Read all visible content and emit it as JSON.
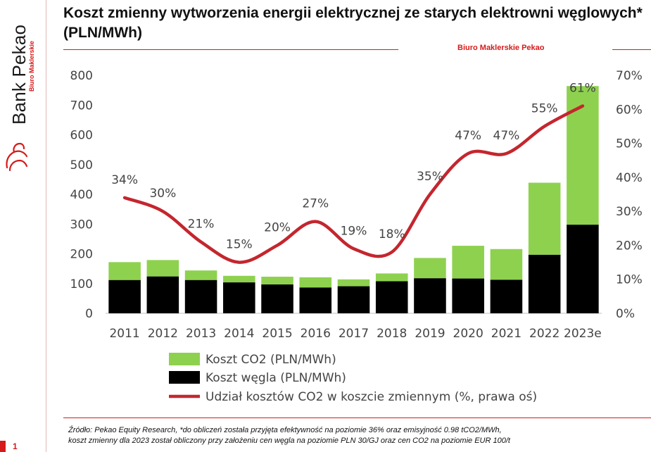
{
  "header": {
    "title": "Koszt zmienny wytworzenia energii elektrycznej ze starych elektrowni węglowych* (PLN/MWh)",
    "source_label": "Biuro Maklerskie Pekao"
  },
  "brand": {
    "name": "Bank Pekao",
    "subtitle": "Biuro Maklerskie",
    "logo_icon": "pekao-bison-icon",
    "accent_color": "#d51b1b"
  },
  "slide": {
    "number": "1"
  },
  "footnote": {
    "line1": "Źródło: Pekao Equity Research, *do obliczeń została przyjęta efektywność na poziomie 36% oraz emisyjność 0.98 tCO2/MWh,",
    "line2": "koszt zmienny dla 2023 został obliczony przy założeniu cen węgla na poziomie PLN 30/GJ oraz cen CO2 na poziomie EUR 100/t"
  },
  "chart_data": {
    "type": "bar",
    "stacked": true,
    "title": "Koszt zmienny wytworzenia energii elektrycznej ze starych elektrowni węglowych* (PLN/MWh)",
    "categories": [
      "2011",
      "2012",
      "2013",
      "2014",
      "2015",
      "2016",
      "2017",
      "2018",
      "2019",
      "2020",
      "2021",
      "2022",
      "2023e"
    ],
    "series": [
      {
        "name": "Koszt węgla (PLN/MWh)",
        "type": "bar",
        "axis": "left",
        "color": "#000000",
        "values": [
          112,
          124,
          112,
          104,
          97,
          87,
          91,
          108,
          118,
          117,
          113,
          197,
          298
        ]
      },
      {
        "name": "Koszt CO2 (PLN/MWh)",
        "type": "bar",
        "axis": "left",
        "color": "#8ed14f",
        "values": [
          60,
          55,
          32,
          22,
          26,
          34,
          23,
          26,
          68,
          110,
          103,
          242,
          466
        ]
      },
      {
        "name": "Udział kosztów CO2 w koszcie zmiennym (%, prawa oś)",
        "type": "line",
        "axis": "right",
        "color": "#c4262e",
        "values": [
          34,
          30,
          21,
          15,
          20,
          27,
          19,
          18,
          35,
          47,
          47,
          55,
          61
        ]
      }
    ],
    "data_labels": [
      "34%",
      "30%",
      "21%",
      "15%",
      "20%",
      "27%",
      "19%",
      "18%",
      "35%",
      "47%",
      "47%",
      "55%",
      "61%"
    ],
    "y_left": {
      "min": 0,
      "max": 800,
      "ticks": [
        0,
        100,
        200,
        300,
        400,
        500,
        600,
        700,
        800
      ]
    },
    "y_right": {
      "min": 0,
      "max": 70,
      "ticks": [
        "0%",
        "10%",
        "20%",
        "30%",
        "40%",
        "50%",
        "60%",
        "70%"
      ]
    },
    "legend": [
      "Koszt CO2 (PLN/MWh)",
      "Koszt węgla (PLN/MWh)",
      "Udział kosztów CO2 w koszcie zmiennym (%, prawa oś)"
    ],
    "legend_position": "bottom",
    "grid": false
  }
}
